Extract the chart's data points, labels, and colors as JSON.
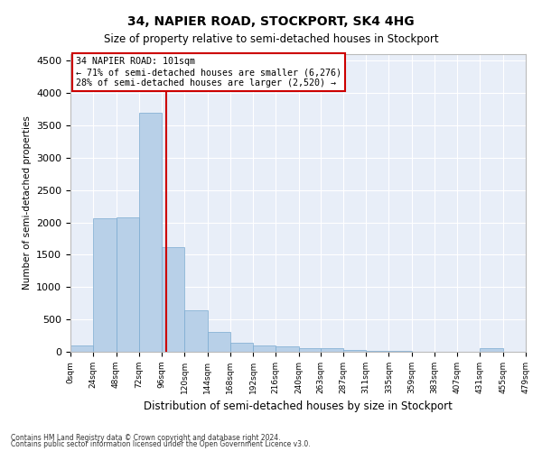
{
  "title": "34, NAPIER ROAD, STOCKPORT, SK4 4HG",
  "subtitle": "Size of property relative to semi-detached houses in Stockport",
  "xlabel": "Distribution of semi-detached houses by size in Stockport",
  "ylabel": "Number of semi-detached properties",
  "property_size": 101,
  "property_label": "34 NAPIER ROAD: 101sqm",
  "pct_smaller": 71,
  "count_smaller": 6276,
  "pct_larger": 28,
  "count_larger": 2520,
  "bar_color": "#b8d0e8",
  "bar_edge_color": "#7aaad0",
  "marker_line_color": "#cc0000",
  "annotation_box_edge": "#cc0000",
  "background_color": "#e8eef8",
  "grid_color": "#ffffff",
  "bin_edges": [
    0,
    24,
    48,
    72,
    96,
    120,
    144,
    168,
    192,
    216,
    240,
    263,
    287,
    311,
    335,
    359,
    383,
    407,
    431,
    455,
    479
  ],
  "bin_heights": [
    100,
    2060,
    2080,
    3700,
    1620,
    640,
    300,
    145,
    100,
    80,
    60,
    50,
    30,
    20,
    10,
    5,
    3,
    2,
    50,
    2
  ],
  "tick_labels": [
    "0sqm",
    "24sqm",
    "48sqm",
    "72sqm",
    "96sqm",
    "120sqm",
    "144sqm",
    "168sqm",
    "192sqm",
    "216sqm",
    "240sqm",
    "263sqm",
    "287sqm",
    "311sqm",
    "335sqm",
    "359sqm",
    "383sqm",
    "407sqm",
    "431sqm",
    "455sqm",
    "479sqm"
  ],
  "ylim": [
    0,
    4600
  ],
  "yticks": [
    0,
    500,
    1000,
    1500,
    2000,
    2500,
    3000,
    3500,
    4000,
    4500
  ],
  "footer1": "Contains HM Land Registry data © Crown copyright and database right 2024.",
  "footer2": "Contains public sector information licensed under the Open Government Licence v3.0."
}
